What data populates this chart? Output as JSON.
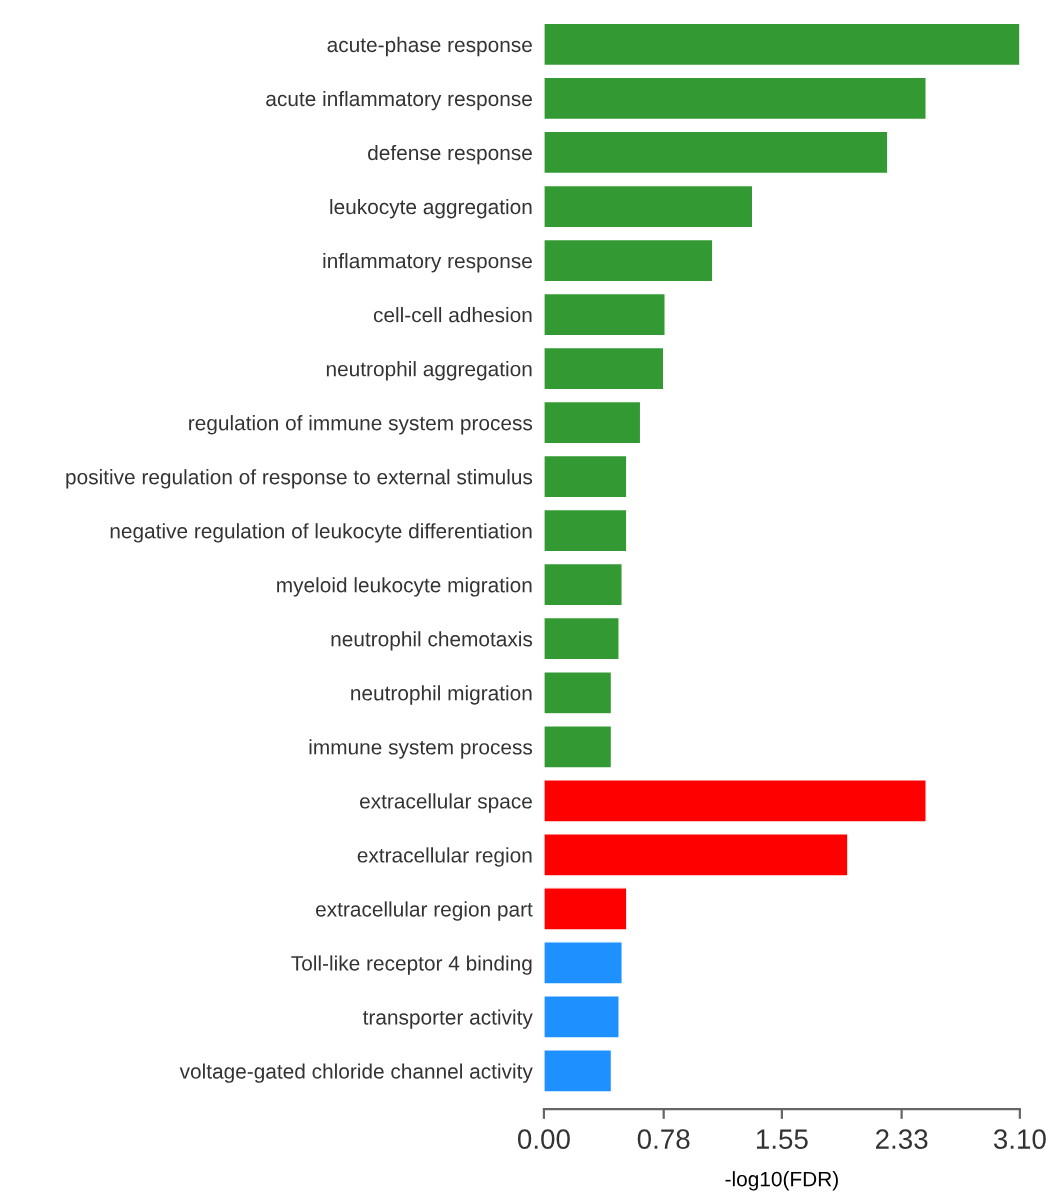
{
  "chart_data": {
    "type": "bar",
    "orientation": "horizontal",
    "xlabel": "-log10(FDR)",
    "categories": [
      "acute-phase response",
      "acute inflammatory response",
      "defense response",
      "leukocyte aggregation",
      "inflammatory response",
      "cell-cell adhesion",
      "neutrophil aggregation",
      "regulation of immune system process",
      "positive regulation of response to external stimulus",
      "negative regulation of leukocyte differentiation",
      "myeloid leukocyte migration",
      "neutrophil chemotaxis",
      "neutrophil migration",
      "immune system process",
      "extracellular space",
      "extracellular region",
      "extracellular region part",
      "Toll-like receptor 4 binding",
      "transporter activity",
      "voltage-gated chloride channel activity"
    ],
    "values": [
      3.1,
      2.49,
      2.24,
      1.36,
      1.1,
      0.79,
      0.78,
      0.63,
      0.54,
      0.54,
      0.51,
      0.49,
      0.44,
      0.44,
      2.49,
      1.98,
      0.54,
      0.51,
      0.49,
      0.44
    ],
    "colors": [
      "#339933",
      "#339933",
      "#339933",
      "#339933",
      "#339933",
      "#339933",
      "#339933",
      "#339933",
      "#339933",
      "#339933",
      "#339933",
      "#339933",
      "#339933",
      "#339933",
      "#ff0000",
      "#ff0000",
      "#ff0000",
      "#1e90ff",
      "#1e90ff",
      "#1e90ff"
    ],
    "xlim": [
      0,
      3.1
    ],
    "xticks": [
      {
        "value": 0,
        "label": "0.00"
      },
      0.78,
      1.55,
      2.33,
      {
        "value": 3.1,
        "label": "3.10"
      }
    ],
    "grid": false
  }
}
